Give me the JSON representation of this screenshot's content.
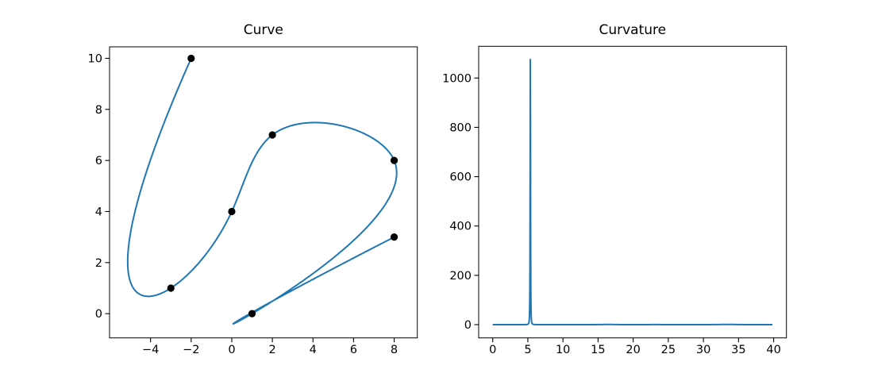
{
  "figure": {
    "background": "#ffffff",
    "curve_color": "#1f77b4",
    "marker_color": "#000000",
    "axis_color": "#000000"
  },
  "chart_data": [
    {
      "type": "line",
      "title": "Curve",
      "description": "Parametric cubic spline (not-a-knot, chord-length parameterized) interpolating 7 control points, drawn as a blue line with black dot markers at the control points; the spline makes a hairpin turn just past the point (1,0)",
      "points": [
        [
          8,
          3
        ],
        [
          1,
          0
        ],
        [
          8,
          6
        ],
        [
          2,
          7
        ],
        [
          0,
          4
        ],
        [
          -3,
          1
        ],
        [
          -2,
          10
        ]
      ],
      "xlim": [
        -6.02,
        9.14
      ],
      "ylim": [
        -0.95,
        10.45
      ],
      "x_ticks": {
        "values": [
          -4,
          -2,
          0,
          2,
          4,
          6,
          8
        ],
        "labels": [
          "−4",
          "−2",
          "0",
          "2",
          "4",
          "6",
          "8"
        ]
      },
      "y_ticks": {
        "values": [
          0,
          2,
          4,
          6,
          8,
          10
        ],
        "labels": [
          "0",
          "2",
          "4",
          "6",
          "8",
          "10"
        ]
      },
      "grid": false,
      "legend": null
    },
    {
      "type": "line",
      "title": "Curvature",
      "description": "Curvature of the spline versus the chord-length parameter t; essentially zero along the whole curve except a single sharp narrow spike where the spline makes its hairpin turn",
      "x_range": [
        0,
        39.82
      ],
      "peak": {
        "x": 5.33,
        "value": 1075
      },
      "baseline_value": 1,
      "xlim": [
        -2.0,
        41.82
      ],
      "ylim": [
        -53.7,
        1128.7
      ],
      "x_ticks": {
        "values": [
          0,
          5,
          10,
          15,
          20,
          25,
          30,
          35,
          40
        ],
        "labels": [
          "0",
          "5",
          "10",
          "15",
          "20",
          "25",
          "30",
          "35",
          "40"
        ]
      },
      "y_ticks": {
        "values": [
          0,
          200,
          400,
          600,
          800,
          1000
        ],
        "labels": [
          "0",
          "200",
          "400",
          "600",
          "800",
          "1000"
        ]
      },
      "grid": false,
      "legend": null
    }
  ]
}
